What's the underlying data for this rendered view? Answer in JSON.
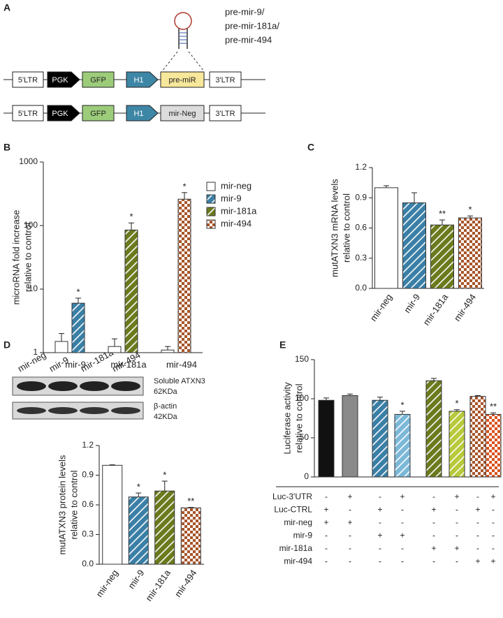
{
  "panel_labels": [
    "A",
    "B",
    "C",
    "D",
    "E"
  ],
  "construct_diagram": {
    "hairpin_labels": [
      "pre-mir-9/",
      "pre-mir-181a/",
      "pre-mir-494"
    ],
    "constructs": [
      [
        "5'LTR",
        "PGK",
        "GFP",
        "H1",
        "pre-miR",
        "3'LTR"
      ],
      [
        "5'LTR",
        "PGK",
        "GFP",
        "H1",
        "mir-Neg",
        "3'LTR"
      ]
    ]
  },
  "blot": {
    "lanes": [
      "mir-neg",
      "mir-9",
      "mir-181a",
      "mir-494"
    ],
    "bands": [
      [
        "Soluble ATXN3",
        "62KDa"
      ],
      [
        "β-actin",
        "42KDa"
      ]
    ]
  },
  "chart_data": [
    {
      "type": "bar",
      "scale": "log",
      "ylabel": [
        "microRNA fold increase",
        "relative to control"
      ],
      "categories": [
        "mir-9",
        "mir-181a",
        "mir-494"
      ],
      "ylim": [
        1,
        1000
      ],
      "yticks": [
        1,
        10,
        100,
        1000
      ],
      "legend": "right",
      "series": [
        {
          "name": "mir-neg",
          "color": "#ffffff",
          "pattern": "solid",
          "values": [
            1.5,
            1.25,
            1.1
          ],
          "errors": [
            0.5,
            0.4,
            0.15
          ],
          "significance": [
            null,
            null,
            null
          ]
        },
        {
          "name": "mir-9",
          "color": "#3a7fa6",
          "pattern": "hatch",
          "values": [
            6,
            null,
            null
          ],
          "errors": [
            1.2,
            null,
            null
          ],
          "significance": [
            "*",
            null,
            null
          ]
        },
        {
          "name": "mir-181a",
          "color": "#6a7a1c",
          "pattern": "hatch",
          "values": [
            null,
            85,
            null
          ],
          "errors": [
            null,
            25,
            null
          ],
          "significance": [
            null,
            "*",
            null
          ]
        },
        {
          "name": "mir-494",
          "color": "#a8552a",
          "pattern": "checker",
          "values": [
            null,
            null,
            260
          ],
          "errors": [
            null,
            null,
            70
          ],
          "significance": [
            null,
            null,
            "*"
          ]
        }
      ]
    },
    {
      "type": "bar",
      "ylabel": [
        "mutATXN3 mRNA levels",
        "relative to control"
      ],
      "categories": [
        "mir-neg",
        "mir-9",
        "mir-181a",
        "mir-494"
      ],
      "values": [
        1.0,
        0.85,
        0.63,
        0.7
      ],
      "errors": [
        0.02,
        0.1,
        0.05,
        0.02
      ],
      "significance": [
        null,
        null,
        "**",
        "*"
      ],
      "colors": [
        "#ffffff",
        "#3a7fa6",
        "#6a7a1c",
        "#a8552a"
      ],
      "patterns": [
        "solid",
        "hatch",
        "hatch",
        "checker"
      ],
      "ylim": [
        0,
        1.2
      ],
      "yticks": [
        {
          "value": 0,
          "label": "0.0"
        },
        {
          "value": 0.3,
          "label": "0.3"
        },
        {
          "value": 0.6,
          "label": "0.6"
        },
        {
          "value": 0.9,
          "label": "0.9"
        },
        {
          "value": 1.2,
          "label": "1.2"
        }
      ]
    },
    {
      "type": "bar",
      "ylabel": [
        "mutATXN3 protein levels",
        "relative to control"
      ],
      "categories": [
        "mir-neg",
        "mir-9",
        "mir-181a",
        "mir-494"
      ],
      "values": [
        1.0,
        0.68,
        0.74,
        0.57
      ],
      "errors": [
        0.005,
        0.04,
        0.1,
        0.005
      ],
      "significance": [
        null,
        "*",
        "*",
        "**"
      ],
      "colors": [
        "#ffffff",
        "#3a7fa6",
        "#6a7a1c",
        "#a8552a"
      ],
      "patterns": [
        "solid",
        "hatch",
        "hatch",
        "checker"
      ],
      "ylim": [
        0,
        1.2
      ],
      "yticks": [
        {
          "value": 0,
          "label": "0.0"
        },
        {
          "value": 0.3,
          "label": "0.3"
        },
        {
          "value": 0.6,
          "label": "0.6"
        },
        {
          "value": 0.9,
          "label": "0.9"
        },
        {
          "value": 1.2,
          "label": "1.2"
        }
      ]
    },
    {
      "type": "bar",
      "ylabel": [
        "Luciferase activity",
        "relative to control"
      ],
      "values": [
        98,
        104,
        98,
        80,
        123,
        84,
        103,
        80
      ],
      "errors": [
        3,
        2,
        4,
        4,
        3,
        2,
        1,
        2
      ],
      "significance": [
        null,
        null,
        null,
        "*",
        null,
        "*",
        null,
        "**"
      ],
      "colors": [
        "#111111",
        "#8a8a8a",
        "#3a7fa6",
        "#7bb8d8",
        "#6a7a1c",
        "#b8c93a",
        "#a8552a",
        "#d9531e"
      ],
      "patterns": [
        "solid",
        "solid",
        "hatch",
        "hatch",
        "hatch",
        "hatch",
        "checker",
        "checker"
      ],
      "ylim": [
        0,
        150
      ],
      "yticks": [
        0,
        50,
        100,
        150
      ],
      "table": [
        {
          "label": "Luc-3'UTR",
          "marks": [
            "-",
            "+",
            "-",
            "+",
            "-",
            "+",
            "-",
            "+"
          ]
        },
        {
          "label": "Luc-CTRL",
          "marks": [
            "+",
            "-",
            "+",
            "-",
            "+",
            "-",
            "+",
            "-"
          ]
        },
        {
          "label": "mir-neg",
          "marks": [
            "+",
            "+",
            "-",
            "-",
            "-",
            "-",
            "-",
            "-"
          ]
        },
        {
          "label": "mir-9",
          "marks": [
            "-",
            "-",
            "+",
            "+",
            "-",
            "-",
            "-",
            "-"
          ]
        },
        {
          "label": "mir-181a",
          "marks": [
            "-",
            "-",
            "-",
            "-",
            "+",
            "+",
            "-",
            "-"
          ]
        },
        {
          "label": "mir-494",
          "marks": [
            "-",
            "-",
            "-",
            "-",
            "-",
            "-",
            "+",
            "+"
          ]
        }
      ]
    }
  ]
}
